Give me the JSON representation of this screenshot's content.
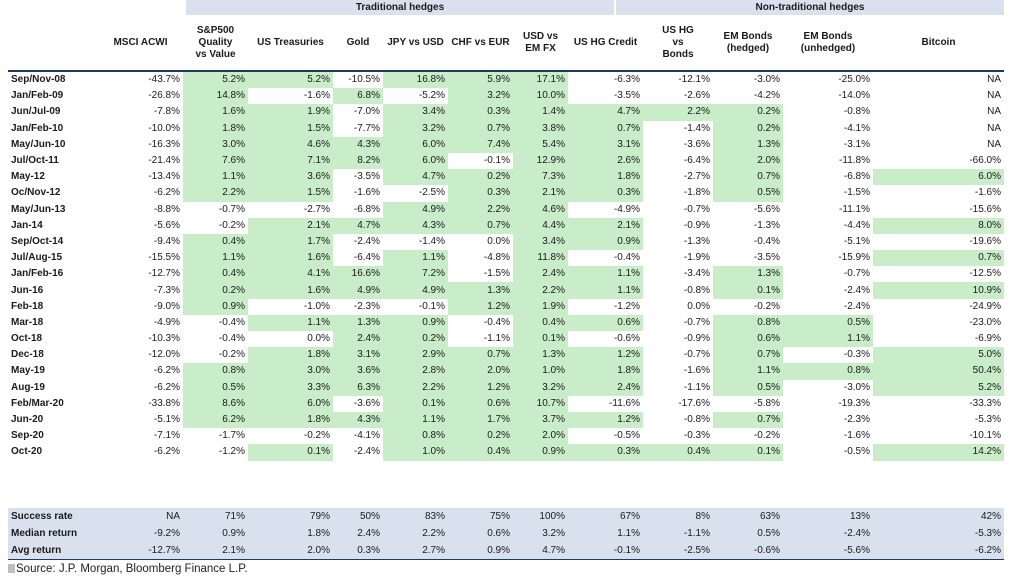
{
  "chart_data": {
    "type": "table",
    "groups": [
      {
        "label": "Traditional hedges"
      },
      {
        "label": "Non-traditional hedges"
      }
    ],
    "columns": [
      "",
      "MSCI ACWI",
      "S&P500 Quality vs Value",
      "US Treasuries",
      "Gold",
      "JPY vs USD",
      "CHF vs EUR",
      "USD vs EM FX",
      "US HG Credit",
      "US HG vs Bonds",
      "EM Bonds (hedged)",
      "EM Bonds (unhedged)",
      "Bitcoin"
    ],
    "rows": [
      {
        "label": "Sep/Nov-08",
        "values": [
          "-43.7%",
          "5.2%",
          "5.2%",
          "-10.5%",
          "16.8%",
          "5.9%",
          "17.1%",
          "-6.3%",
          "-12.1%",
          "-3.0%",
          "-25.0%",
          "NA"
        ],
        "hl": [
          0,
          1,
          1,
          0,
          1,
          1,
          1,
          0,
          0,
          0,
          0,
          0
        ]
      },
      {
        "label": "Jan/Feb-09",
        "values": [
          "-26.8%",
          "14.8%",
          "-1.6%",
          "6.8%",
          "-5.2%",
          "3.2%",
          "10.0%",
          "-3.5%",
          "-2.6%",
          "-4.2%",
          "-14.0%",
          "NA"
        ],
        "hl": [
          0,
          1,
          0,
          1,
          0,
          1,
          1,
          0,
          0,
          0,
          0,
          0
        ]
      },
      {
        "label": "Jun/Jul-09",
        "values": [
          "-7.8%",
          "1.6%",
          "1.9%",
          "-7.0%",
          "3.4%",
          "0.3%",
          "1.4%",
          "4.7%",
          "2.2%",
          "0.2%",
          "-0.8%",
          "NA"
        ],
        "hl": [
          0,
          1,
          1,
          0,
          1,
          1,
          1,
          1,
          1,
          1,
          0,
          0
        ]
      },
      {
        "label": "Jan/Feb-10",
        "values": [
          "-10.0%",
          "1.8%",
          "1.5%",
          "-7.7%",
          "3.2%",
          "0.7%",
          "3.8%",
          "0.7%",
          "-1.4%",
          "0.2%",
          "-4.1%",
          "NA"
        ],
        "hl": [
          0,
          1,
          1,
          0,
          1,
          1,
          1,
          1,
          0,
          1,
          0,
          0
        ]
      },
      {
        "label": "May/Jun-10",
        "values": [
          "-16.3%",
          "3.0%",
          "4.6%",
          "4.3%",
          "6.0%",
          "7.4%",
          "5.4%",
          "3.1%",
          "-3.6%",
          "1.3%",
          "-3.1%",
          "NA"
        ],
        "hl": [
          0,
          1,
          1,
          1,
          1,
          1,
          1,
          1,
          0,
          1,
          0,
          0
        ]
      },
      {
        "label": "Jul/Oct-11",
        "values": [
          "-21.4%",
          "7.6%",
          "7.1%",
          "8.2%",
          "6.0%",
          "-0.1%",
          "12.9%",
          "2.6%",
          "-6.4%",
          "2.0%",
          "-11.8%",
          "-66.0%"
        ],
        "hl": [
          0,
          1,
          1,
          1,
          1,
          0,
          1,
          1,
          0,
          1,
          0,
          0
        ]
      },
      {
        "label": "May-12",
        "values": [
          "-13.4%",
          "1.1%",
          "3.6%",
          "-3.5%",
          "4.7%",
          "0.2%",
          "7.3%",
          "1.8%",
          "-2.7%",
          "0.7%",
          "-6.8%",
          "6.0%"
        ],
        "hl": [
          0,
          1,
          1,
          0,
          1,
          1,
          1,
          1,
          0,
          1,
          0,
          1
        ]
      },
      {
        "label": "Oc/Nov-12",
        "values": [
          "-6.2%",
          "2.2%",
          "1.5%",
          "-1.6%",
          "-2.5%",
          "0.3%",
          "2.1%",
          "0.3%",
          "-1.8%",
          "0.5%",
          "-1.5%",
          "-1.6%"
        ],
        "hl": [
          0,
          1,
          1,
          0,
          0,
          1,
          1,
          1,
          0,
          1,
          0,
          0
        ]
      },
      {
        "label": "May/Jun-13",
        "values": [
          "-8.8%",
          "-0.7%",
          "-2.7%",
          "-6.8%",
          "4.9%",
          "2.2%",
          "4.6%",
          "-4.9%",
          "-0.7%",
          "-5.6%",
          "-11.1%",
          "-15.6%"
        ],
        "hl": [
          0,
          0,
          0,
          0,
          1,
          1,
          1,
          0,
          0,
          0,
          0,
          0
        ]
      },
      {
        "label": "Jan-14",
        "values": [
          "-5.6%",
          "-0.2%",
          "2.1%",
          "4.7%",
          "4.3%",
          "0.7%",
          "4.4%",
          "2.1%",
          "-0.9%",
          "-1.3%",
          "-4.4%",
          "8.0%"
        ],
        "hl": [
          0,
          0,
          1,
          1,
          1,
          1,
          1,
          1,
          0,
          0,
          0,
          1
        ]
      },
      {
        "label": "Sep/Oct-14",
        "values": [
          "-9.4%",
          "0.4%",
          "1.7%",
          "-2.4%",
          "-1.4%",
          "0.0%",
          "3.4%",
          "0.9%",
          "-1.3%",
          "-0.4%",
          "-5.1%",
          "-19.6%"
        ],
        "hl": [
          0,
          1,
          1,
          0,
          0,
          0,
          1,
          1,
          0,
          0,
          0,
          0
        ]
      },
      {
        "label": "Jul/Aug-15",
        "values": [
          "-15.5%",
          "1.1%",
          "1.6%",
          "-6.4%",
          "1.1%",
          "-4.8%",
          "11.8%",
          "-0.4%",
          "-1.9%",
          "-3.5%",
          "-15.9%",
          "0.7%"
        ],
        "hl": [
          0,
          1,
          1,
          0,
          1,
          0,
          1,
          0,
          0,
          0,
          0,
          1
        ]
      },
      {
        "label": "Jan/Feb-16",
        "values": [
          "-12.7%",
          "0.4%",
          "4.1%",
          "16.6%",
          "7.2%",
          "-1.5%",
          "2.4%",
          "1.1%",
          "-3.4%",
          "1.3%",
          "-0.7%",
          "-12.5%"
        ],
        "hl": [
          0,
          1,
          1,
          1,
          1,
          0,
          1,
          1,
          0,
          1,
          0,
          0
        ]
      },
      {
        "label": "Jun-16",
        "values": [
          "-7.3%",
          "0.2%",
          "1.6%",
          "4.9%",
          "4.9%",
          "1.3%",
          "2.2%",
          "1.1%",
          "-0.8%",
          "0.1%",
          "-2.4%",
          "10.9%"
        ],
        "hl": [
          0,
          1,
          1,
          1,
          1,
          1,
          1,
          1,
          0,
          1,
          0,
          1
        ]
      },
      {
        "label": "Feb-18",
        "values": [
          "-9.0%",
          "0.9%",
          "-1.0%",
          "-2.3%",
          "-0.1%",
          "1.2%",
          "1.9%",
          "-1.2%",
          "0.0%",
          "-0.2%",
          "-2.4%",
          "-24.9%"
        ],
        "hl": [
          0,
          1,
          0,
          0,
          0,
          1,
          1,
          0,
          0,
          0,
          0,
          0
        ]
      },
      {
        "label": "Mar-18",
        "values": [
          "-4.9%",
          "-0.4%",
          "1.1%",
          "1.3%",
          "0.9%",
          "-0.4%",
          "0.4%",
          "0.6%",
          "-0.7%",
          "0.8%",
          "0.5%",
          "-23.0%"
        ],
        "hl": [
          0,
          0,
          1,
          1,
          1,
          0,
          1,
          1,
          0,
          1,
          1,
          0
        ]
      },
      {
        "label": "Oct-18",
        "values": [
          "-10.3%",
          "-0.4%",
          "0.0%",
          "2.4%",
          "0.2%",
          "-1.1%",
          "0.1%",
          "-0.6%",
          "-0.9%",
          "0.6%",
          "1.1%",
          "-6.9%"
        ],
        "hl": [
          0,
          0,
          0,
          1,
          1,
          0,
          1,
          0,
          0,
          1,
          1,
          0
        ]
      },
      {
        "label": "Dec-18",
        "values": [
          "-12.0%",
          "-0.2%",
          "1.8%",
          "3.1%",
          "2.9%",
          "0.7%",
          "1.3%",
          "1.2%",
          "-0.7%",
          "0.7%",
          "-0.3%",
          "5.0%"
        ],
        "hl": [
          0,
          0,
          1,
          1,
          1,
          1,
          1,
          1,
          0,
          1,
          0,
          1
        ]
      },
      {
        "label": "May-19",
        "values": [
          "-6.2%",
          "0.8%",
          "3.0%",
          "3.6%",
          "2.8%",
          "2.0%",
          "1.0%",
          "1.8%",
          "-1.6%",
          "1.1%",
          "0.8%",
          "50.4%"
        ],
        "hl": [
          0,
          1,
          1,
          1,
          1,
          1,
          1,
          1,
          0,
          1,
          1,
          1
        ]
      },
      {
        "label": "Aug-19",
        "values": [
          "-6.2%",
          "0.5%",
          "3.3%",
          "6.3%",
          "2.2%",
          "1.2%",
          "3.2%",
          "2.4%",
          "-1.1%",
          "0.5%",
          "-3.0%",
          "5.2%"
        ],
        "hl": [
          0,
          1,
          1,
          1,
          1,
          1,
          1,
          1,
          0,
          1,
          0,
          1
        ]
      },
      {
        "label": "Feb/Mar-20",
        "values": [
          "-33.8%",
          "8.6%",
          "6.0%",
          "-3.6%",
          "0.1%",
          "0.6%",
          "10.7%",
          "-11.6%",
          "-17.6%",
          "-5.8%",
          "-19.3%",
          "-33.3%"
        ],
        "hl": [
          0,
          1,
          1,
          0,
          1,
          1,
          1,
          0,
          0,
          0,
          0,
          0
        ]
      },
      {
        "label": "Jun-20",
        "values": [
          "-5.1%",
          "6.2%",
          "1.8%",
          "4.3%",
          "1.1%",
          "1.7%",
          "3.7%",
          "1.2%",
          "-0.8%",
          "0.7%",
          "-2.3%",
          "-5.3%"
        ],
        "hl": [
          0,
          1,
          1,
          1,
          1,
          1,
          1,
          1,
          0,
          1,
          0,
          0
        ]
      },
      {
        "label": "Sep-20",
        "values": [
          "-7.1%",
          "-1.7%",
          "-0.2%",
          "-4.1%",
          "0.8%",
          "0.2%",
          "2.0%",
          "-0.5%",
          "-0.3%",
          "-0.2%",
          "-1.6%",
          "-10.1%"
        ],
        "hl": [
          0,
          0,
          0,
          0,
          1,
          1,
          1,
          0,
          0,
          0,
          0,
          0
        ]
      },
      {
        "label": "Oct-20",
        "values": [
          "-6.2%",
          "-1.2%",
          "0.1%",
          "-2.4%",
          "1.0%",
          "0.4%",
          "0.9%",
          "0.3%",
          "0.4%",
          "0.1%",
          "-0.5%",
          "14.2%"
        ],
        "hl": [
          0,
          0,
          1,
          0,
          1,
          1,
          1,
          1,
          1,
          1,
          0,
          1
        ]
      }
    ],
    "summary": [
      {
        "label": "Success rate",
        "values": [
          "NA",
          "71%",
          "79%",
          "50%",
          "83%",
          "75%",
          "100%",
          "67%",
          "8%",
          "63%",
          "13%",
          "42%"
        ]
      },
      {
        "label": "Median return",
        "values": [
          "-9.2%",
          "0.9%",
          "1.8%",
          "2.4%",
          "2.2%",
          "0.6%",
          "3.2%",
          "1.1%",
          "-1.1%",
          "0.5%",
          "-2.4%",
          "-5.3%"
        ]
      },
      {
        "label": "Avg return",
        "values": [
          "-12.7%",
          "2.1%",
          "2.0%",
          "0.3%",
          "2.7%",
          "0.9%",
          "4.7%",
          "-0.1%",
          "-2.5%",
          "-0.6%",
          "-5.6%",
          "-6.2%"
        ]
      }
    ],
    "highlight_color": "#c9ecc9",
    "header_band_color": "#d9e1ef"
  },
  "source": "Source: J.P. Morgan, Bloomberg Finance L.P."
}
